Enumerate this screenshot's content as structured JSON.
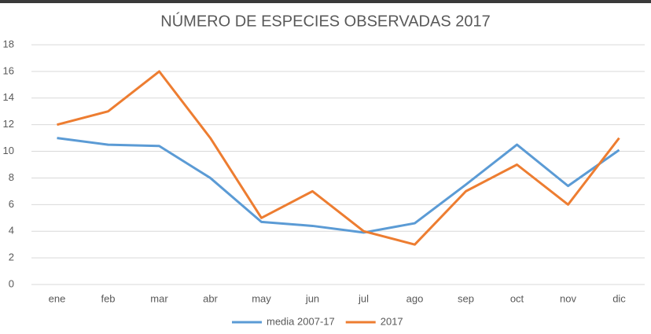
{
  "chart_data": {
    "type": "line",
    "title": "NÚMERO DE ESPECIES OBSERVADAS 2017",
    "categories": [
      "ene",
      "feb",
      "mar",
      "abr",
      "may",
      "jun",
      "jul",
      "ago",
      "sep",
      "oct",
      "nov",
      "dic"
    ],
    "series": [
      {
        "name": "media 2007-17",
        "color": "#5b9bd5",
        "values": [
          11,
          10.5,
          10.4,
          8,
          4.7,
          4.4,
          3.9,
          4.6,
          7.5,
          10.5,
          7.4,
          10.1
        ]
      },
      {
        "name": "2017",
        "color": "#ed7d31",
        "values": [
          12,
          13,
          16,
          11,
          5,
          7,
          4,
          3,
          7,
          9,
          6,
          11
        ]
      }
    ],
    "ylim": [
      0,
      18
    ],
    "yticks": [
      0,
      2,
      4,
      6,
      8,
      10,
      12,
      14,
      16,
      18
    ],
    "grid": true,
    "legend": "bottom"
  }
}
